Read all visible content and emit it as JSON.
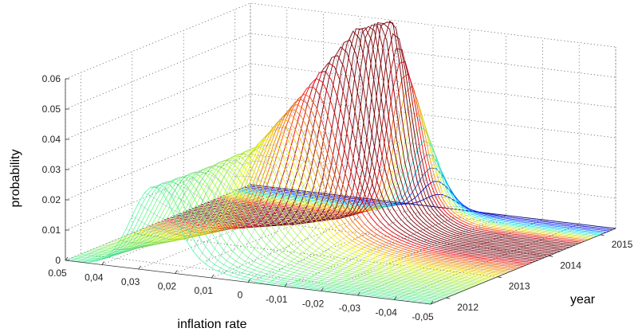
{
  "chart_data": {
    "type": "surface-3d-mesh",
    "title": "",
    "xlabel": "inflation rate",
    "ylabel": "year",
    "zlabel": "probability",
    "x_ticks": [
      "0.05",
      "0,04",
      "0,03",
      "0,02",
      "0,01",
      "0",
      "-0,01",
      "-0,02",
      "-0,03",
      "-0,04",
      "-0,05"
    ],
    "y_ticks": [
      "2012",
      "2013",
      "2014",
      "2015"
    ],
    "z_ticks": [
      "0",
      "0.01",
      "0.02",
      "0.03",
      "0.04",
      "0.05",
      "0.06"
    ],
    "xlim": [
      -0.05,
      0.05
    ],
    "ylim": [
      2011.7,
      2015.3
    ],
    "zlim": [
      0,
      0.06
    ],
    "grid": true,
    "colormap": "jet",
    "mesh_rows": 60,
    "mesh_cols": 60,
    "surface_ridges": [
      {
        "year": 2011.7,
        "mode": 0.026,
        "sd": 0.006,
        "peak": 0.026
      },
      {
        "year": 2012.3,
        "mode": 0.019,
        "sd": 0.008,
        "peak": 0.029
      },
      {
        "year": 2012.9,
        "mode": 0.013,
        "sd": 0.008,
        "peak": 0.033
      },
      {
        "year": 2013.5,
        "mode": 0.01,
        "sd": 0.007,
        "peak": 0.045
      },
      {
        "year": 2014.0,
        "mode": 0.003,
        "sd": 0.005,
        "peak": 0.063
      },
      {
        "year": 2014.4,
        "mode": 0.0,
        "sd": 0.004,
        "peak": 0.068
      },
      {
        "year": 2015.3,
        "mode": -0.003,
        "sd": 0.004,
        "peak": 0.0
      }
    ],
    "colors": {
      "low": "#00008f",
      "high": "#800000"
    }
  }
}
